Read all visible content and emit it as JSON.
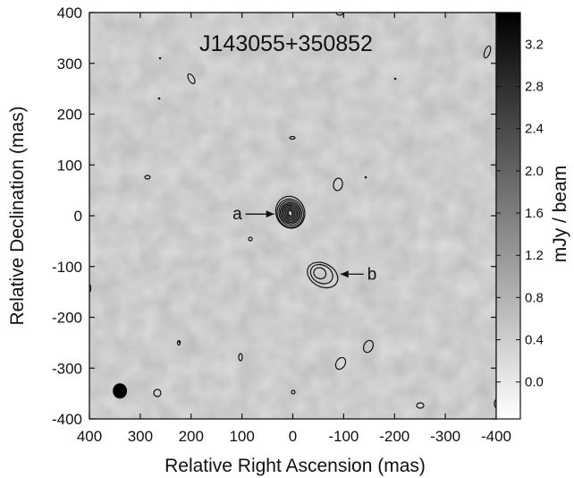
{
  "chart_data": {
    "type": "heatmap",
    "title": "J143055+350852",
    "xlabel": "Relative Right Ascension (mas)",
    "ylabel": "Relative Declination (mas)",
    "xlim": [
      400,
      -400
    ],
    "ylim": [
      -400,
      400
    ],
    "x_ticks": [
      400,
      300,
      200,
      100,
      0,
      -100,
      -200,
      -300,
      -400
    ],
    "y_ticks": [
      400,
      300,
      200,
      100,
      0,
      -100,
      -200,
      -300,
      -400
    ],
    "colorbar": {
      "label": "mJy / beam",
      "range": [
        -0.35,
        3.5
      ],
      "ticks": [
        3.2,
        2.8,
        2.4,
        2.0,
        1.6,
        1.2,
        0.8,
        0.4,
        0.0
      ],
      "tick_labels": [
        "3.2",
        "2.8",
        "2.4",
        "2.0",
        "1.6",
        "1.2",
        "0.8",
        "0.4",
        "0.0"
      ],
      "colormap": "white-to-black"
    },
    "components": [
      {
        "label": "a",
        "x": 5,
        "y": 5
      },
      {
        "label": "b",
        "x": -55,
        "y": -115
      }
    ],
    "beam": {
      "x": 340,
      "y": -345
    },
    "colors": {
      "background": "#dedede",
      "contour": "#111111"
    }
  }
}
